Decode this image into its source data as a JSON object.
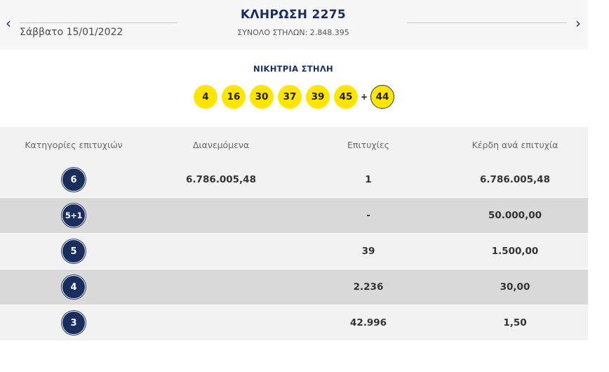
{
  "header": {
    "prev_arrow": "‹",
    "next_arrow": "›",
    "draw_title": "ΚΛΗΡΩΣΗ 2275",
    "draw_date": "Σάββατο 15/01/2022",
    "total_columns": "ΣΥΝΟΛΟ ΣΤΗΛΩΝ: 2.848.395"
  },
  "winning": {
    "title": "ΝΙΚΗΤΡΙΑ ΣΤΗΛΗ",
    "numbers": [
      "4",
      "16",
      "30",
      "37",
      "39",
      "45"
    ],
    "plus": "+",
    "joker": "44"
  },
  "table": {
    "headers": [
      "Κατηγορίες επιτυχιών",
      "Διανεμόμενα",
      "Επιτυχίες",
      "Κέρδη ανά επιτυχία"
    ],
    "rows": [
      {
        "category": "6",
        "distributed": "6.786.005,48",
        "winners": "1",
        "prize": "6.786.005,48"
      },
      {
        "category": "5+1",
        "distributed": "",
        "winners": "-",
        "prize": "50.000,00"
      },
      {
        "category": "5",
        "distributed": "",
        "winners": "39",
        "prize": "1.500,00"
      },
      {
        "category": "4",
        "distributed": "",
        "winners": "2.236",
        "prize": "30,00"
      },
      {
        "category": "3",
        "distributed": "",
        "winners": "42.996",
        "prize": "1,50"
      }
    ]
  },
  "colors": {
    "navy": "#1a2e5e",
    "ball_yellow": "#ffe500",
    "row_light": "#f2f2f2",
    "row_dark": "#d9d9d9"
  }
}
